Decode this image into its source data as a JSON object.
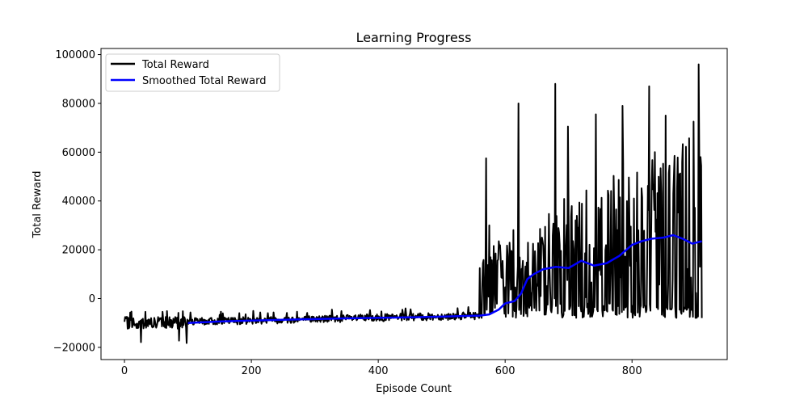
{
  "chart_data": {
    "type": "line",
    "title": "Learning Progress",
    "xlabel": "Episode Count",
    "ylabel": "Total Reward",
    "xlim": [
      -37,
      950
    ],
    "ylim": [
      -25000,
      102500
    ],
    "xticks": [
      0,
      200,
      400,
      600,
      800
    ],
    "yticks": [
      -20000,
      0,
      20000,
      40000,
      60000,
      80000,
      100000
    ],
    "tick_labels_x": [
      "0",
      "200",
      "400",
      "600",
      "800"
    ],
    "tick_labels_y": [
      "−20000",
      "0",
      "20000",
      "40000",
      "60000",
      "80000",
      "100000"
    ],
    "grid": false,
    "legend_position": "top-left",
    "colors": {
      "raw": "#000000",
      "smoothed": "#0000ff"
    },
    "series": [
      {
        "name": "Total Reward",
        "key": "raw",
        "episodes": 910,
        "phases": [
          {
            "x_start": 0,
            "x_end": 100,
            "baseline": -10000,
            "spread": 2500,
            "min": -19000,
            "max": -5000
          },
          {
            "x_start": 100,
            "x_end": 560,
            "baseline_start": -9500,
            "baseline_end": -7000,
            "spread": 1500,
            "max": -4500
          },
          {
            "x_start": 560,
            "x_end": 910,
            "low": -8000,
            "max": 96000,
            "notable_peaks": [
              {
                "x": 560,
                "y": 12500
              },
              {
                "x": 570,
                "y": 57500
              },
              {
                "x": 575,
                "y": 30000
              },
              {
                "x": 621,
                "y": 80000
              },
              {
                "x": 679,
                "y": 88000
              },
              {
                "x": 699,
                "y": 70500
              },
              {
                "x": 743,
                "y": 75500
              },
              {
                "x": 785,
                "y": 79000
              },
              {
                "x": 827,
                "y": 87000
              },
              {
                "x": 853,
                "y": 75000
              },
              {
                "x": 905,
                "y": 96000
              },
              {
                "x": 908,
                "y": 58000
              },
              {
                "x": 910,
                "y": -8000
              }
            ]
          }
        ]
      },
      {
        "name": "Smoothed Total Reward",
        "key": "smoothed",
        "x": [
          100,
          150,
          200,
          250,
          300,
          350,
          400,
          450,
          500,
          540,
          560,
          575,
          590,
          600,
          615,
          625,
          635,
          645,
          660,
          680,
          700,
          720,
          740,
          760,
          780,
          800,
          815,
          830,
          850,
          865,
          880,
          895,
          910
        ],
        "y": [
          -10000,
          -9400,
          -9000,
          -8700,
          -8400,
          -8100,
          -7900,
          -7700,
          -7400,
          -7100,
          -7000,
          -6500,
          -4500,
          -2000,
          -1000,
          2000,
          8000,
          10000,
          12000,
          13000,
          12500,
          15500,
          13500,
          14500,
          17500,
          22000,
          23500,
          24500,
          25000,
          26000,
          24500,
          22500,
          23500
        ]
      }
    ]
  }
}
